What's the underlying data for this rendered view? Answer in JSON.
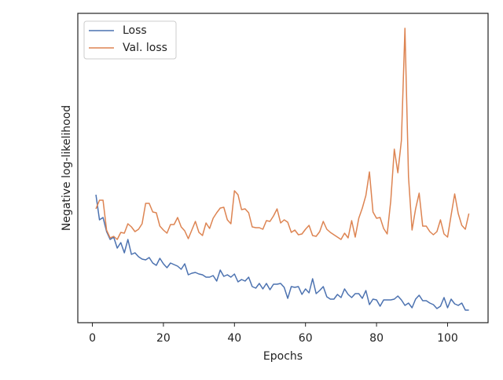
{
  "chart_data": {
    "type": "line",
    "xlabel": "Epochs",
    "ylabel": "Negative log-likelihood",
    "x": [
      1,
      2,
      3,
      4,
      5,
      6,
      7,
      8,
      9,
      10,
      11,
      12,
      13,
      14,
      15,
      16,
      17,
      18,
      19,
      20,
      21,
      22,
      23,
      24,
      25,
      26,
      27,
      28,
      29,
      30,
      31,
      32,
      33,
      34,
      35,
      36,
      37,
      38,
      39,
      40,
      41,
      42,
      43,
      44,
      45,
      46,
      47,
      48,
      49,
      50,
      51,
      52,
      53,
      54,
      55,
      56,
      57,
      58,
      59,
      60,
      61,
      62,
      63,
      64,
      65,
      66,
      67,
      68,
      69,
      70,
      71,
      72,
      73,
      74,
      75,
      76,
      77,
      78,
      79,
      80,
      81,
      82,
      83,
      84,
      85,
      86,
      87,
      88,
      89,
      90,
      91,
      92,
      93,
      94,
      95,
      96,
      97,
      98,
      99,
      100,
      101,
      102,
      103,
      104,
      105,
      106
    ],
    "series": [
      {
        "name": "Loss",
        "color": "#4c72b0",
        "values": [
          163,
          131,
          134,
          116,
          106,
          109,
          95,
          102,
          89,
          106,
          87,
          89,
          84,
          81,
          80,
          83,
          76,
          73,
          82,
          75,
          70,
          76,
          74,
          72,
          68,
          75,
          61,
          63,
          64,
          62,
          61,
          58,
          58,
          60,
          53,
          67,
          59,
          61,
          58,
          62,
          52,
          55,
          53,
          58,
          46,
          44,
          50,
          43,
          50,
          42,
          49,
          49,
          50,
          45,
          31,
          46,
          45,
          46,
          36,
          43,
          38,
          56,
          37,
          41,
          46,
          33,
          30,
          30,
          36,
          32,
          43,
          36,
          32,
          37,
          37,
          31,
          41,
          23,
          30,
          29,
          21,
          29,
          29,
          29,
          30,
          34,
          29,
          22,
          25,
          19,
          30,
          35,
          28,
          28,
          25,
          23,
          18,
          21,
          32,
          19,
          30,
          24,
          22,
          25,
          16,
          16
        ]
      },
      {
        "name": "Val. loss",
        "color": "#dd8452",
        "values": [
          145,
          156,
          156,
          118,
          108,
          110,
          106,
          115,
          114,
          126,
          122,
          116,
          119,
          126,
          152,
          152,
          141,
          140,
          123,
          118,
          114,
          125,
          125,
          134,
          122,
          117,
          107,
          118,
          129,
          115,
          111,
          127,
          120,
          133,
          140,
          146,
          147,
          131,
          126,
          168,
          163,
          144,
          145,
          140,
          122,
          121,
          121,
          119,
          130,
          129,
          136,
          145,
          127,
          131,
          128,
          115,
          118,
          112,
          113,
          119,
          124,
          111,
          110,
          116,
          129,
          119,
          115,
          112,
          109,
          106,
          114,
          108,
          130,
          109,
          133,
          146,
          162,
          192,
          141,
          133,
          134,
          120,
          113,
          155,
          221,
          191,
          232,
          375,
          186,
          118,
          145,
          165,
          123,
          123,
          116,
          112,
          116,
          131,
          113,
          109,
          137,
          164,
          139,
          124,
          119,
          139
        ]
      }
    ],
    "xlim": [
      -4.1,
      111.4
    ],
    "xticks": [
      0,
      20,
      40,
      60,
      80,
      100
    ],
    "ylim": [
      0,
      394
    ],
    "legend": "upper left"
  }
}
